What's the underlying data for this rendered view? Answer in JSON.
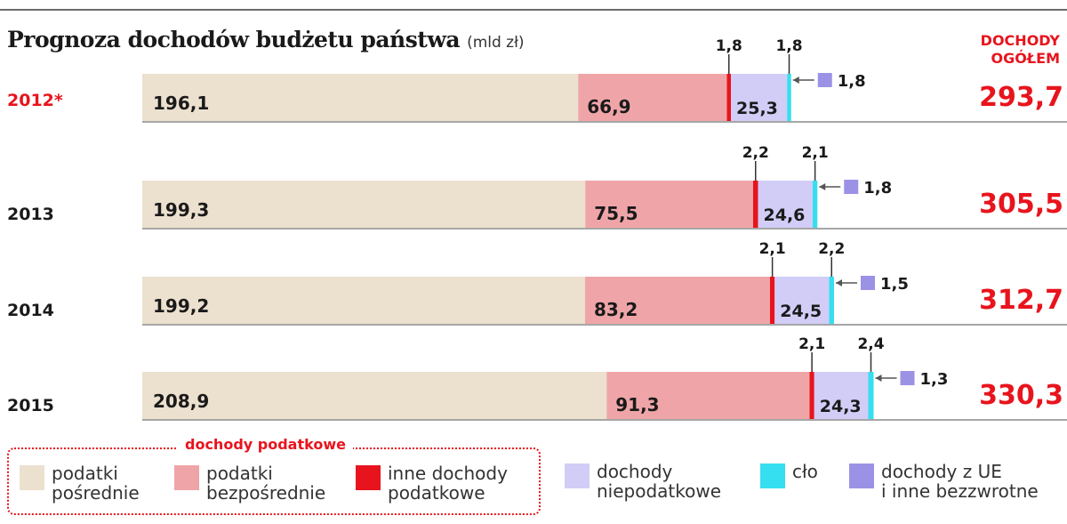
{
  "title": "Prognoza dochodów budżetu państwa",
  "unit": "(mld zł)",
  "total_header_line1": "DOCHODY",
  "total_header_line2": "OGÓŁEM",
  "tax_group_label": "dochody podatkowe",
  "colors": {
    "podatki_posrednie": "#ece0cf",
    "podatki_bezposrednie": "#efa5a8",
    "inne_podatkowe": "#e8141d",
    "niepodatkowe": "#d1cdf7",
    "clo": "#35dfef",
    "ue": "#9b92e6",
    "total": "#e8141d"
  },
  "legend": [
    {
      "key": "podatki_posrednie",
      "label": "podatki\npośrednie"
    },
    {
      "key": "podatki_bezposrednie",
      "label": "podatki\nbezpośrednie"
    },
    {
      "key": "inne_podatkowe",
      "label": "inne dochody\npodatkowe"
    },
    {
      "key": "niepodatkowe",
      "label": "dochody\nniepodatkowe"
    },
    {
      "key": "clo",
      "label": "cło"
    },
    {
      "key": "ue",
      "label": "dochody z UE\ni inne bezzwrotne"
    }
  ],
  "chart_data": {
    "type": "bar",
    "orientation": "horizontal",
    "stacked": true,
    "title": "Prognoza dochodów budżetu państwa",
    "unit": "mld zł",
    "categories": [
      "2012*",
      "2013",
      "2014",
      "2015"
    ],
    "series": [
      {
        "name": "podatki pośrednie",
        "key": "podatki_posrednie",
        "values": [
          "196,1",
          "199,3",
          "199,2",
          "208,9"
        ]
      },
      {
        "name": "podatki bezpośrednie",
        "key": "podatki_bezposrednie",
        "values": [
          "66,9",
          "75,5",
          "83,2",
          "91,3"
        ]
      },
      {
        "name": "inne dochody podatkowe",
        "key": "inne_podatkowe",
        "values": [
          "1,8",
          "2,2",
          "2,1",
          "2,1"
        ]
      },
      {
        "name": "dochody niepodatkowe",
        "key": "niepodatkowe",
        "values": [
          "25,3",
          "24,6",
          "24,5",
          "24,3"
        ]
      },
      {
        "name": "cło",
        "key": "clo",
        "values": [
          "1,8",
          "2,1",
          "2,2",
          "2,4"
        ]
      },
      {
        "name": "dochody z UE i inne bezzwrotne",
        "key": "ue",
        "values": [
          "1,8",
          "1,8",
          "1,5",
          "1,3"
        ]
      }
    ],
    "totals": [
      "293,7",
      "305,5",
      "312,7",
      "330,3"
    ]
  }
}
